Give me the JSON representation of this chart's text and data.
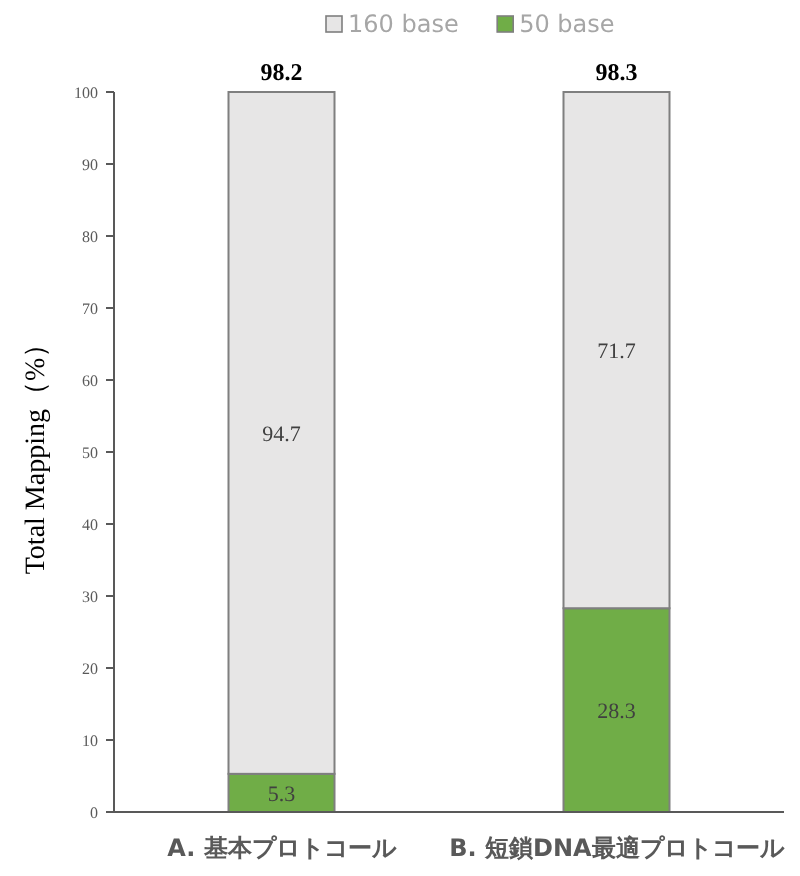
{
  "chart_data": {
    "type": "bar",
    "stacked": true,
    "categories": [
      "A. 基本プロトコール",
      "B. 短鎖DNA最適プロトコール"
    ],
    "series": [
      {
        "name": "50 base",
        "color": "#70ad47",
        "values": [
          5.3,
          28.3
        ]
      },
      {
        "name": "160 base",
        "color": "#e7e6e6",
        "values": [
          94.7,
          71.7
        ]
      }
    ],
    "annotations": [
      {
        "text": "98.2",
        "x": "A. 基本プロトコール",
        "y": 100
      },
      {
        "text": "98.3",
        "x": "B. 短鎖DNA最適プロトコール",
        "y": 100
      }
    ],
    "data_labels": true,
    "ylabel": "Total Mapping（%）",
    "ylim": [
      0,
      100
    ],
    "yticks": [
      0,
      10,
      20,
      30,
      40,
      50,
      60,
      70,
      80,
      90,
      100
    ],
    "grid": false,
    "legend": "top"
  }
}
